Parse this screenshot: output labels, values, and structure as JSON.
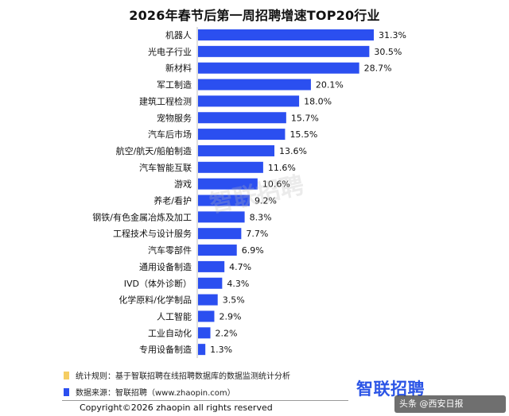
{
  "chart_data": {
    "type": "bar",
    "orientation": "horizontal",
    "title": "2026年春节后第一周招聘增速TOP20行业",
    "categories": [
      "机器人",
      "光电子行业",
      "新材料",
      "军工制造",
      "建筑工程检测",
      "宠物服务",
      "汽车后市场",
      "航空/航天/船舶制造",
      "汽车智能互联",
      "游戏",
      "养老/看护",
      "钢铁/有色金属冶炼及加工",
      "工程技术与设计服务",
      "汽车零部件",
      "通用设备制造",
      "IVD（体外诊断）",
      "化学原料/化学制品",
      "人工智能",
      "工业自动化",
      "专用设备制造"
    ],
    "values": [
      31.3,
      30.5,
      28.7,
      20.1,
      18.0,
      15.7,
      15.5,
      13.6,
      11.6,
      10.6,
      9.2,
      8.3,
      7.7,
      6.9,
      4.7,
      4.3,
      3.5,
      2.9,
      2.2,
      1.3
    ],
    "value_labels": [
      "31.3%",
      "30.5%",
      "28.7%",
      "20.1%",
      "18.0%",
      "15.7%",
      "15.5%",
      "13.6%",
      "11.6%",
      "10.6%",
      "9.2%",
      "8.3%",
      "7.7%",
      "6.9%",
      "4.7%",
      "4.3%",
      "3.5%",
      "2.9%",
      "2.2%",
      "1.3%"
    ],
    "unit": "%",
    "xlim": [
      0,
      31.3
    ],
    "grid": false,
    "legend": "none",
    "bar_color": "#2b4ff0"
  },
  "watermark": "智联招聘",
  "notes": {
    "rule": "统计规则：基于智联招聘在线招聘数据库的数据监测统计分析",
    "rule_color": "#f5cd62",
    "source": "数据来源：智联招聘（www.zhaopin.com）",
    "source_color": "#2b4ff0"
  },
  "copyright": "Copyright©2026 zhaopin all rights reserved",
  "logo": "智联招聘",
  "badge": "头条 @西安日报"
}
